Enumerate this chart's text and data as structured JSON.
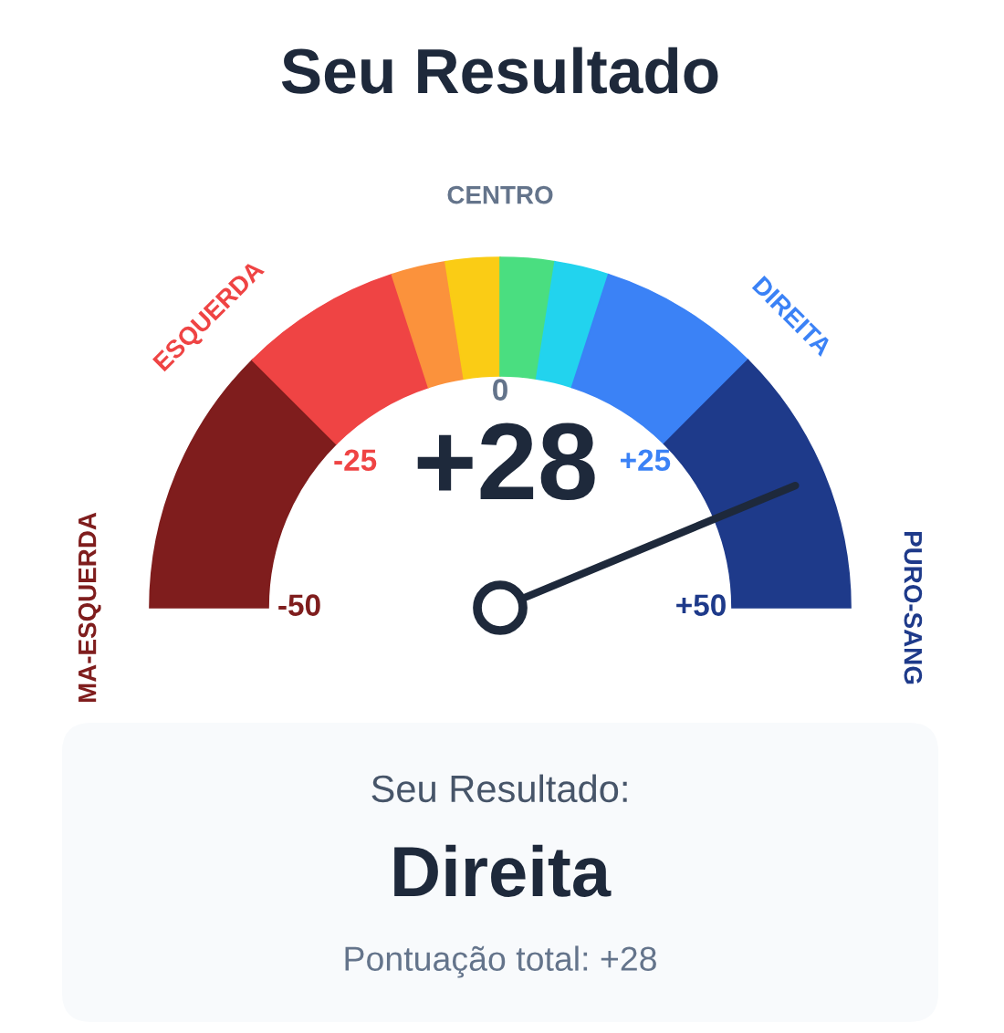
{
  "chart_data": {
    "type": "donut",
    "title": "Seu Resultado",
    "categories": [
      null,
      null,
      null,
      null,
      null,
      null,
      null,
      "DIREITA"
    ],
    "values": [
      25,
      15,
      5,
      5,
      5,
      5,
      15,
      25
    ],
    "colors": [
      "#7f1d1d",
      "#ef4444",
      "#fb923c",
      "#facc15",
      "#4ade80",
      "#22d3ee",
      "#3b82f6",
      "#1e3a8a"
    ],
    "needle": "DIREITA",
    "annotations": [
      "-50",
      "-25",
      "0",
      "+25",
      "+50",
      "MA-ESQUERDA",
      "ESQUERDA",
      "CENTRO",
      "PURO-SANG",
      "+28",
      "Seu Resultado:",
      "Direita",
      "Pontuação total: +28"
    ]
  }
}
